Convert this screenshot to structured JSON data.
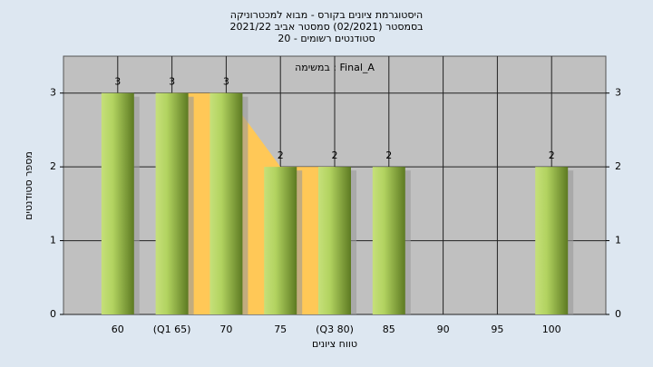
{
  "chart_data": {
    "type": "bar",
    "title": "היסטוגרמת ציונים בקורס - מבוא למכטרוניקה",
    "subtitle": "בסמסטר  (02/2021)  סמסטר אביב 2021/22",
    "subtitle2": "סטודנטים רשומים - 20",
    "annotation": "במשימה : Final_A",
    "x_label": "טווח ציונים",
    "y_label": "מספר סטודנטים",
    "categories": [
      "60",
      "(Q1 65)",
      "70",
      "75",
      "(Q3 80)",
      "85",
      "90",
      "95",
      "100"
    ],
    "values": [
      3,
      3,
      3,
      2,
      2,
      2,
      0,
      0,
      2
    ],
    "area_values": [
      null,
      3,
      3,
      2,
      2,
      null,
      null,
      null,
      null
    ],
    "color": "#8fb83c",
    "area_color": "#ffc857",
    "ylim": [
      0,
      3.5
    ],
    "yticks": [
      0,
      1,
      2,
      3
    ],
    "grid": true
  }
}
